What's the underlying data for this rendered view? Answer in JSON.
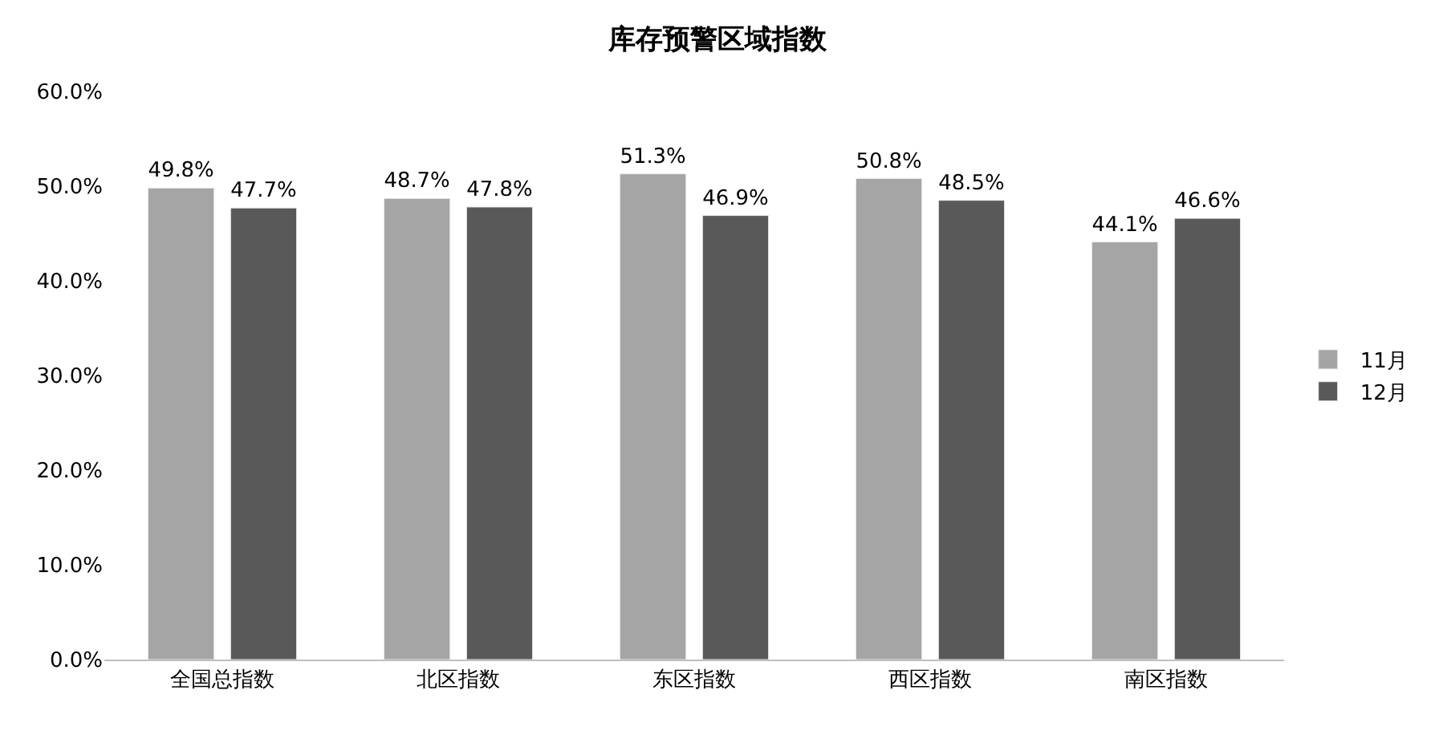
{
  "chart_data": {
    "type": "bar",
    "title": "库存预警区域指数",
    "categories": [
      "全国总指数",
      "北区指数",
      "东区指数",
      "西区指数",
      "南区指数"
    ],
    "series": [
      {
        "name": "11月",
        "color": "#a5a5a5",
        "values": [
          49.8,
          48.7,
          51.3,
          50.8,
          44.1
        ],
        "value_labels": [
          "49.8%",
          "48.7%",
          "51.3%",
          "50.8%",
          "44.1%"
        ]
      },
      {
        "name": "12月",
        "color": "#595959",
        "values": [
          47.7,
          47.8,
          46.9,
          48.5,
          46.6
        ],
        "value_labels": [
          "47.7%",
          "47.8%",
          "46.9%",
          "48.5%",
          "46.6%"
        ]
      }
    ],
    "ylim": [
      0,
      60
    ],
    "yticks": [
      {
        "value": 0,
        "label": "0.0%"
      },
      {
        "value": 10,
        "label": "10.0%"
      },
      {
        "value": 20,
        "label": "20.0%"
      },
      {
        "value": 30,
        "label": "30.0%"
      },
      {
        "value": 40,
        "label": "40.0%"
      },
      {
        "value": 50,
        "label": "50.0%"
      },
      {
        "value": 60,
        "label": "60.0%"
      }
    ],
    "legend": "right"
  }
}
